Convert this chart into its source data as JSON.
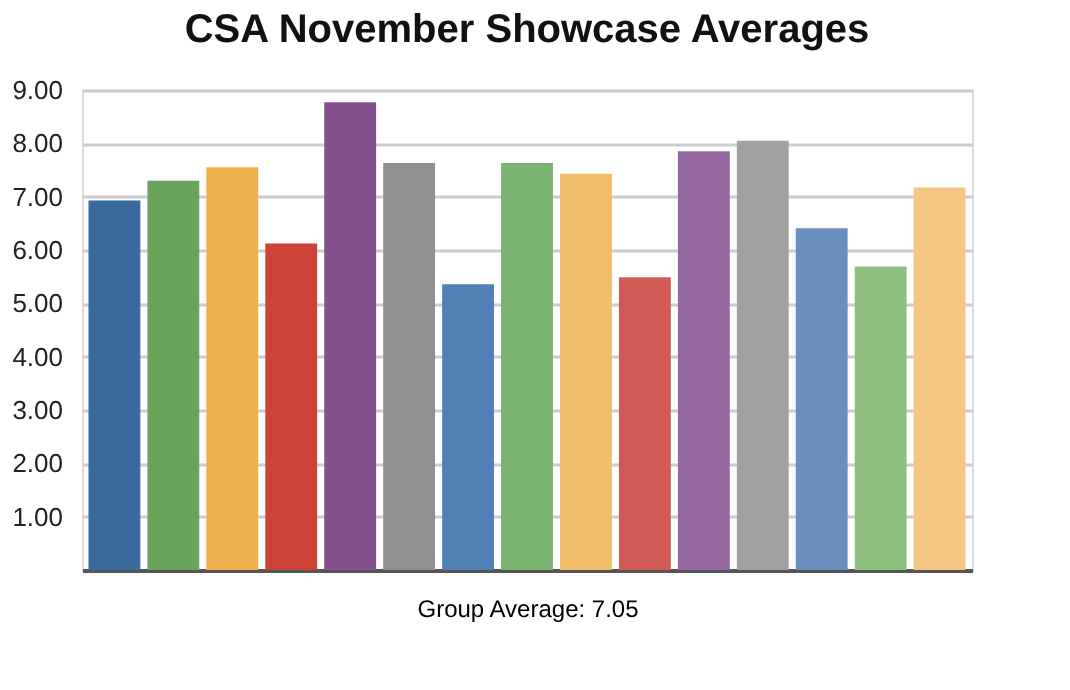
{
  "chart_data": {
    "type": "bar",
    "title": "CSA November Showcase Averages",
    "categories": [
      null,
      null,
      null,
      null,
      null,
      null,
      null,
      null,
      null,
      null,
      null,
      null,
      null,
      null,
      null
    ],
    "values": [
      6.93,
      7.3,
      7.55,
      6.12,
      8.77,
      7.63,
      5.36,
      7.63,
      7.43,
      5.49,
      7.85,
      8.05,
      6.41,
      5.69,
      7.17
    ],
    "colors": [
      "#3a6a9e",
      "#6aa35c",
      "#efb04d",
      "#cc4338",
      "#84508e",
      "#8f9190",
      "#5080b5",
      "#7bb370",
      "#f0bd6a",
      "#d25a56",
      "#9467a0",
      "#a0a2a1",
      "#6a8fbf",
      "#8fbf7f",
      "#f3c683"
    ],
    "ylim": [
      0,
      9
    ],
    "yticks": [
      {
        "value": 1,
        "label": "1.00"
      },
      {
        "value": 2,
        "label": "2.00"
      },
      {
        "value": 3,
        "label": "3.00"
      },
      {
        "value": 4,
        "label": "4.00"
      },
      {
        "value": 5,
        "label": "5.00"
      },
      {
        "value": 6,
        "label": "6.00"
      },
      {
        "value": 7,
        "label": "7.00"
      },
      {
        "value": 8,
        "label": "8.00"
      },
      {
        "value": 9,
        "label": "9.00"
      }
    ],
    "grid": "y",
    "annotations": [
      "Group Average:  7.05"
    ]
  }
}
